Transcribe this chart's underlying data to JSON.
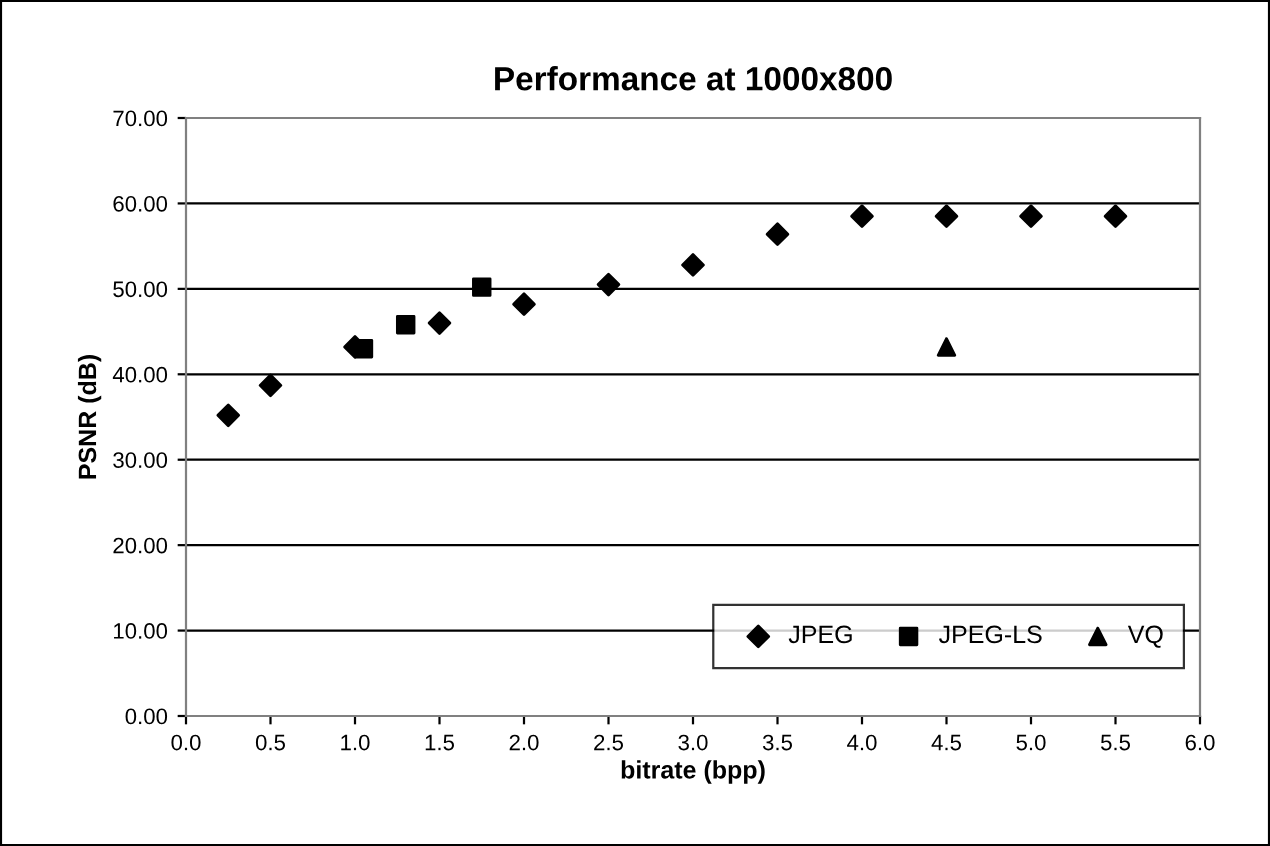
{
  "chart_data": {
    "type": "scatter",
    "title": "Performance at 1000x800",
    "xlabel": "bitrate (bpp)",
    "ylabel": "PSNR (dB)",
    "series": [
      {
        "name": "JPEG",
        "color": "#000000",
        "marker": "diamond",
        "x": [
          0.25,
          0.5,
          1.0,
          1.5,
          2.0,
          2.5,
          3.0,
          3.5,
          4.0,
          4.5,
          5.0,
          5.5
        ],
        "values": [
          35.2,
          38.7,
          43.2,
          46.0,
          48.2,
          50.5,
          52.8,
          56.4,
          58.5,
          58.5,
          58.5,
          58.5
        ]
      },
      {
        "name": "JPEG-LS",
        "color": "#000000",
        "marker": "square",
        "x": [
          1.05,
          1.3,
          1.75
        ],
        "values": [
          43.0,
          45.8,
          50.2
        ]
      },
      {
        "name": "VQ",
        "color": "#000000",
        "marker": "triangle",
        "x": [
          4.5
        ],
        "values": [
          43.2
        ]
      }
    ],
    "xlim": [
      0,
      6
    ],
    "xticks": [
      {
        "value": 0,
        "label": "0.0"
      },
      {
        "value": 0.5,
        "label": "0.5"
      },
      {
        "value": 1,
        "label": "1.0"
      },
      {
        "value": 1.5,
        "label": "1.5"
      },
      {
        "value": 2,
        "label": "2.0"
      },
      {
        "value": 2.5,
        "label": "2.5"
      },
      {
        "value": 3,
        "label": "3.0"
      },
      {
        "value": 3.5,
        "label": "3.5"
      },
      {
        "value": 4,
        "label": "4.0"
      },
      {
        "value": 4.5,
        "label": "4.5"
      },
      {
        "value": 5,
        "label": "5.0"
      },
      {
        "value": 5.5,
        "label": "5.5"
      },
      {
        "value": 6,
        "label": "6.0"
      }
    ],
    "ylim": [
      0,
      70
    ],
    "yticks": [
      {
        "value": 0,
        "label": "0.00"
      },
      {
        "value": 10,
        "label": "10.00"
      },
      {
        "value": 20,
        "label": "20.00"
      },
      {
        "value": 30,
        "label": "30.00"
      },
      {
        "value": 40,
        "label": "40.00"
      },
      {
        "value": 50,
        "label": "50.00"
      },
      {
        "value": 60,
        "label": "60.00"
      },
      {
        "value": 70,
        "label": "70.00"
      }
    ],
    "grid": "y",
    "legend": "bottom right"
  }
}
